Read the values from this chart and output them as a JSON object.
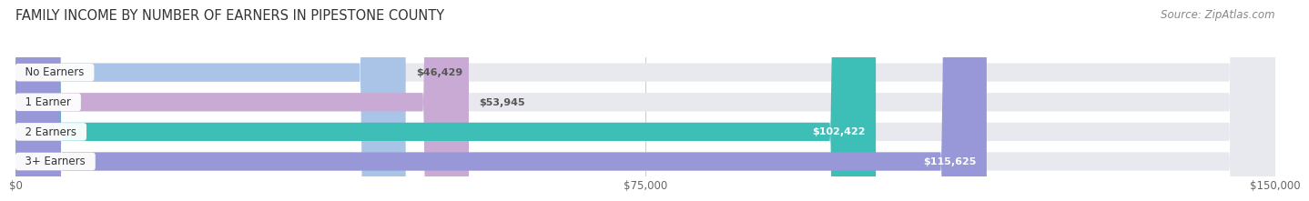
{
  "title": "FAMILY INCOME BY NUMBER OF EARNERS IN PIPESTONE COUNTY",
  "source": "Source: ZipAtlas.com",
  "categories": [
    "No Earners",
    "1 Earner",
    "2 Earners",
    "3+ Earners"
  ],
  "values": [
    46429,
    53945,
    102422,
    115625
  ],
  "bar_colors": [
    "#aac4e8",
    "#c9aad4",
    "#3dbfb8",
    "#9898d8"
  ],
  "value_label_colors": [
    "#555555",
    "#555555",
    "#ffffff",
    "#ffffff"
  ],
  "bar_bg_color": "#e8e8ef",
  "fig_bg_color": "#ffffff",
  "x_max": 150000,
  "x_ticks": [
    0,
    75000,
    150000
  ],
  "x_tick_labels": [
    "$0",
    "$75,000",
    "$150,000"
  ],
  "title_fontsize": 10.5,
  "source_fontsize": 8.5,
  "bar_label_fontsize": 8.0,
  "category_fontsize": 8.5,
  "inside_label_threshold": 0.62
}
